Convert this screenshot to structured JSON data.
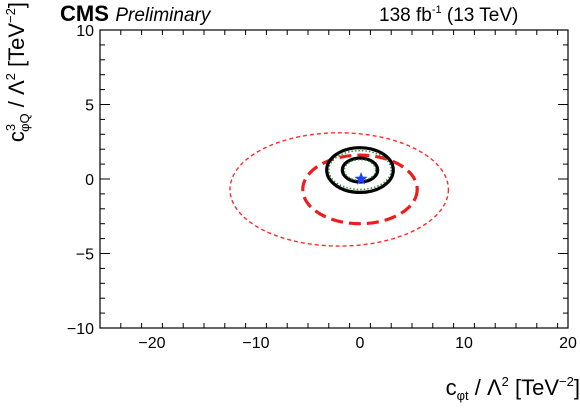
{
  "chart_data": {
    "type": "contour",
    "experiment": "CMS",
    "status": "Preliminary",
    "luminosity": {
      "value": "138",
      "unit": "fb",
      "superscript": "-1",
      "energy": "(13 TeV)"
    },
    "xlabel": {
      "main": "c",
      "sub": "φt",
      "rest": " / Λ",
      "sup": "2",
      "unit_open": " [TeV",
      "unit_sup": "−2",
      "unit_close": "]"
    },
    "ylabel": {
      "main": "c",
      "sup3": "3",
      "sub": "φQ",
      "rest": " / Λ",
      "sup": "2",
      "unit_open": " [TeV",
      "unit_sup": "−2",
      "unit_close": "]"
    },
    "xlim": [
      -25,
      20
    ],
    "ylim": [
      -10,
      10
    ],
    "xticks": [
      -20,
      -10,
      0,
      10,
      20
    ],
    "yticks": [
      -10,
      -5,
      0,
      5,
      10
    ],
    "xtick_labels": [
      "−20",
      "−10",
      "0",
      "10",
      "20"
    ],
    "ytick_labels": [
      "−10",
      "−5",
      "0",
      "5",
      "10"
    ],
    "best_fit": {
      "x": 0.1,
      "y": 0.0,
      "marker": "star",
      "color": "#1f3fff"
    },
    "contours": [
      {
        "cx": -2.0,
        "cy": -0.7,
        "rx": 10.5,
        "ry": 3.8,
        "color": "#ff2a2a",
        "style": "short-dash",
        "weight": "thin"
      },
      {
        "cx": 0.0,
        "cy": -0.7,
        "rx": 5.5,
        "ry": 2.3,
        "color": "#ee1c1c",
        "style": "long-dash",
        "weight": "thick"
      },
      {
        "cx": 0.0,
        "cy": 0.6,
        "rx": 3.2,
        "ry": 1.5,
        "color": "#000000",
        "style": "solid",
        "weight": "thick"
      },
      {
        "cx": 0.0,
        "cy": 0.6,
        "rx": 3.0,
        "ry": 1.3,
        "color": "#2e8b2e",
        "style": "dotted",
        "weight": "thin"
      },
      {
        "cx": 0.0,
        "cy": 0.6,
        "rx": 1.7,
        "ry": 0.8,
        "color": "#000000",
        "style": "solid",
        "weight": "thick"
      },
      {
        "cx": 0.0,
        "cy": 0.6,
        "rx": 1.5,
        "ry": 0.7,
        "color": "#2e8b2e",
        "style": "dotted",
        "weight": "thin"
      }
    ]
  }
}
